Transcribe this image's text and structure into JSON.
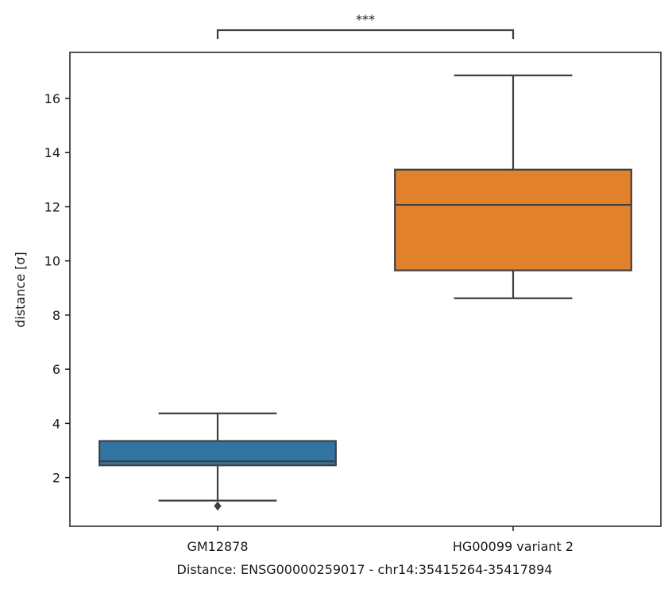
{
  "chart_data": {
    "type": "box",
    "title": "",
    "xlabel": "Distance:  ENSG00000259017 - chr14:35415264-35417894",
    "ylabel": "distance [σ]",
    "ylim": [
      0.2,
      17.7
    ],
    "yticks": [
      2,
      4,
      6,
      8,
      10,
      12,
      14,
      16
    ],
    "grid": false,
    "categories": [
      "GM12878",
      "HG00099 variant 2"
    ],
    "boxes": [
      {
        "label": "GM12878",
        "color": "#3274a1",
        "whisker_low": 1.15,
        "q1": 2.45,
        "median": 2.6,
        "q3": 3.35,
        "whisker_high": 4.37,
        "outliers": [
          0.95
        ]
      },
      {
        "label": "HG00099 variant 2",
        "color": "#e1812c",
        "whisker_low": 8.62,
        "q1": 9.65,
        "median": 12.07,
        "q3": 13.37,
        "whisker_high": 16.85,
        "outliers": []
      }
    ],
    "annotation": {
      "text": "***",
      "between": [
        "GM12878",
        "HG00099 variant 2"
      ]
    }
  }
}
